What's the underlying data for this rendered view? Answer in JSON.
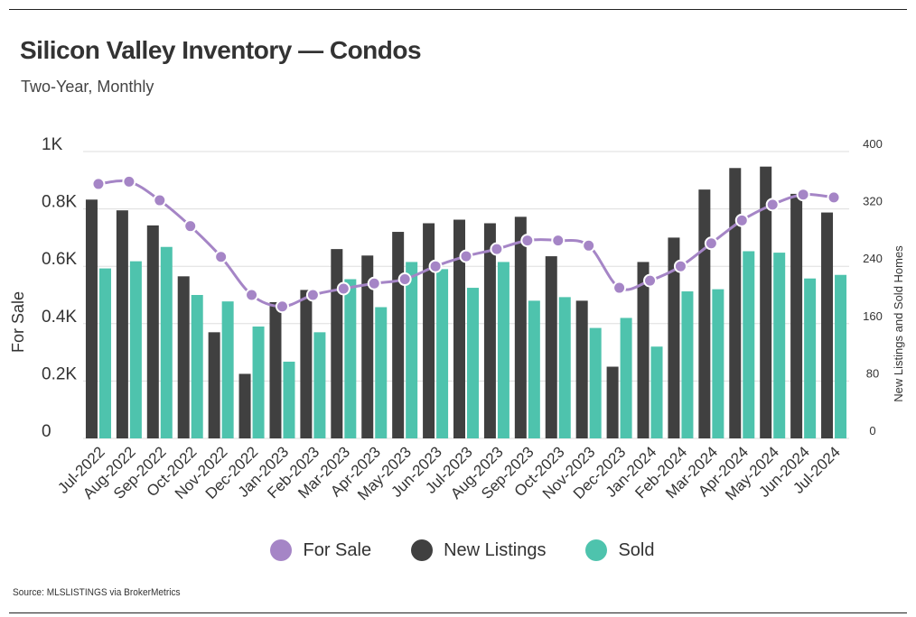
{
  "title": "Silicon Valley Inventory — Condos",
  "subtitle": "Two-Year, Monthly",
  "source": "Source:  MLSLISTINGS via BrokerMetrics",
  "colors": {
    "for_sale": "#a585c6",
    "new_listings": "#404040",
    "sold": "#4ec3ad",
    "grid": "#dddddd"
  },
  "chart_data": {
    "type": "bar",
    "categories": [
      "Jul-2022",
      "Aug-2022",
      "Sep-2022",
      "Oct-2022",
      "Nov-2022",
      "Dec-2022",
      "Jan-2023",
      "Feb-2023",
      "Mar-2023",
      "Apr-2023",
      "May-2023",
      "Jun-2023",
      "Jul-2023",
      "Aug-2023",
      "Sep-2023",
      "Oct-2023",
      "Nov-2023",
      "Dec-2023",
      "Jan-2024",
      "Feb-2024",
      "Mar-2024",
      "Apr-2024",
      "May-2024",
      "Jun-2024",
      "Jul-2024"
    ],
    "left_axis": {
      "label": "For Sale",
      "ylim": [
        0,
        1000
      ],
      "ticks": [
        0,
        200,
        400,
        600,
        800,
        1000
      ],
      "tick_labels": [
        "0",
        "0.2K",
        "0.4K",
        "0.6K",
        "0.8K",
        "1K"
      ]
    },
    "right_axis": {
      "label": "New Listings and Sold Homes",
      "ylim": [
        0,
        400
      ],
      "ticks": [
        0,
        80,
        160,
        240,
        320,
        400
      ],
      "tick_labels": [
        "0",
        "80",
        "160",
        "240",
        "320",
        "400"
      ]
    },
    "series": [
      {
        "name": "For Sale",
        "type": "line",
        "axis": "left",
        "values": [
          887,
          895,
          830,
          740,
          633,
          500,
          460,
          500,
          522,
          540,
          555,
          600,
          635,
          660,
          690,
          690,
          672,
          525,
          550,
          600,
          680,
          760,
          815,
          850,
          840
        ]
      },
      {
        "name": "New Listings",
        "type": "bar",
        "axis": "right",
        "values": [
          333,
          318,
          297,
          226,
          148,
          90,
          190,
          207,
          264,
          255,
          288,
          300,
          305,
          300,
          309,
          254,
          192,
          100,
          246,
          280,
          347,
          377,
          379,
          341,
          315
        ]
      },
      {
        "name": "Sold",
        "type": "bar",
        "axis": "right",
        "values": [
          237,
          247,
          267,
          200,
          191,
          156,
          107,
          148,
          222,
          183,
          246,
          236,
          210,
          246,
          192,
          197,
          154,
          168,
          128,
          205,
          208,
          261,
          259,
          223,
          228
        ]
      }
    ],
    "legend": {
      "position": "bottom-center"
    },
    "grid": true
  }
}
